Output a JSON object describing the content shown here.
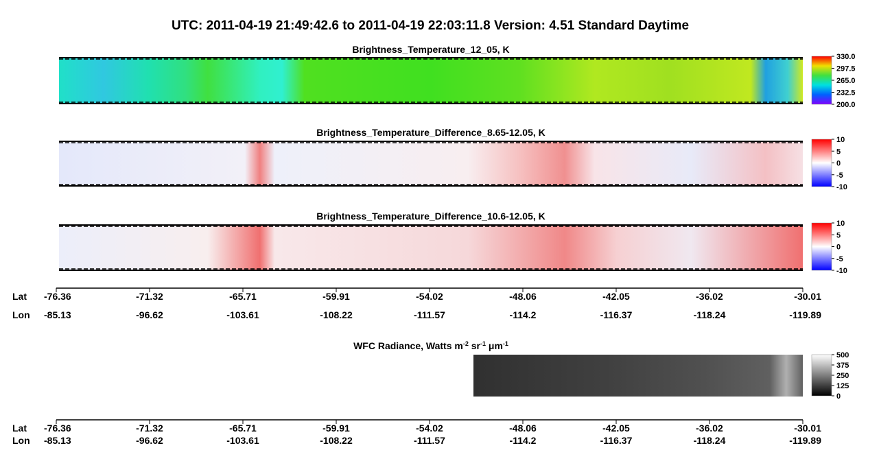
{
  "title": "UTC:  2011-04-19   21:49:42.6  to  2011-04-19   22:03:11.8    Version: 4.51  Standard Daytime",
  "panels": [
    {
      "title": "Brightness_Temperature_12_05, K",
      "range": [
        200,
        330
      ],
      "ticks": [
        {
          "value": 330,
          "label": "330.0"
        },
        {
          "value": 297.5,
          "label": "297.5"
        },
        {
          "value": 265,
          "label": "265.0"
        },
        {
          "value": 232.5,
          "label": "232.5"
        },
        {
          "value": 200,
          "label": "200.0"
        }
      ]
    },
    {
      "title": "Brightness_Temperature_Difference_8.65-12.05, K",
      "range": [
        -10,
        10
      ],
      "ticks": [
        10,
        5,
        0,
        -5,
        -10
      ]
    },
    {
      "title": "Brightness_Temperature_Difference_10.6-12.05, K",
      "range": [
        -10,
        10
      ],
      "ticks": [
        10,
        5,
        0,
        -5,
        -10
      ]
    },
    {
      "title_parts": [
        "WFC Radiance, Watts m",
        "-2",
        " sr",
        "-1",
        " μm",
        "-1"
      ],
      "range": [
        0,
        500
      ],
      "ticks": [
        500,
        375,
        250,
        125,
        0
      ]
    }
  ],
  "axis": {
    "lat_label": "Lat",
    "lon_label": "Lon",
    "lat": [
      -76.36,
      -71.32,
      -65.71,
      -59.91,
      -54.02,
      -48.06,
      -42.05,
      -36.02,
      -30.01
    ],
    "lon": [
      -85.13,
      -96.62,
      -103.61,
      -108.22,
      -111.57,
      -114.2,
      -116.37,
      -118.24,
      -119.89
    ]
  }
}
